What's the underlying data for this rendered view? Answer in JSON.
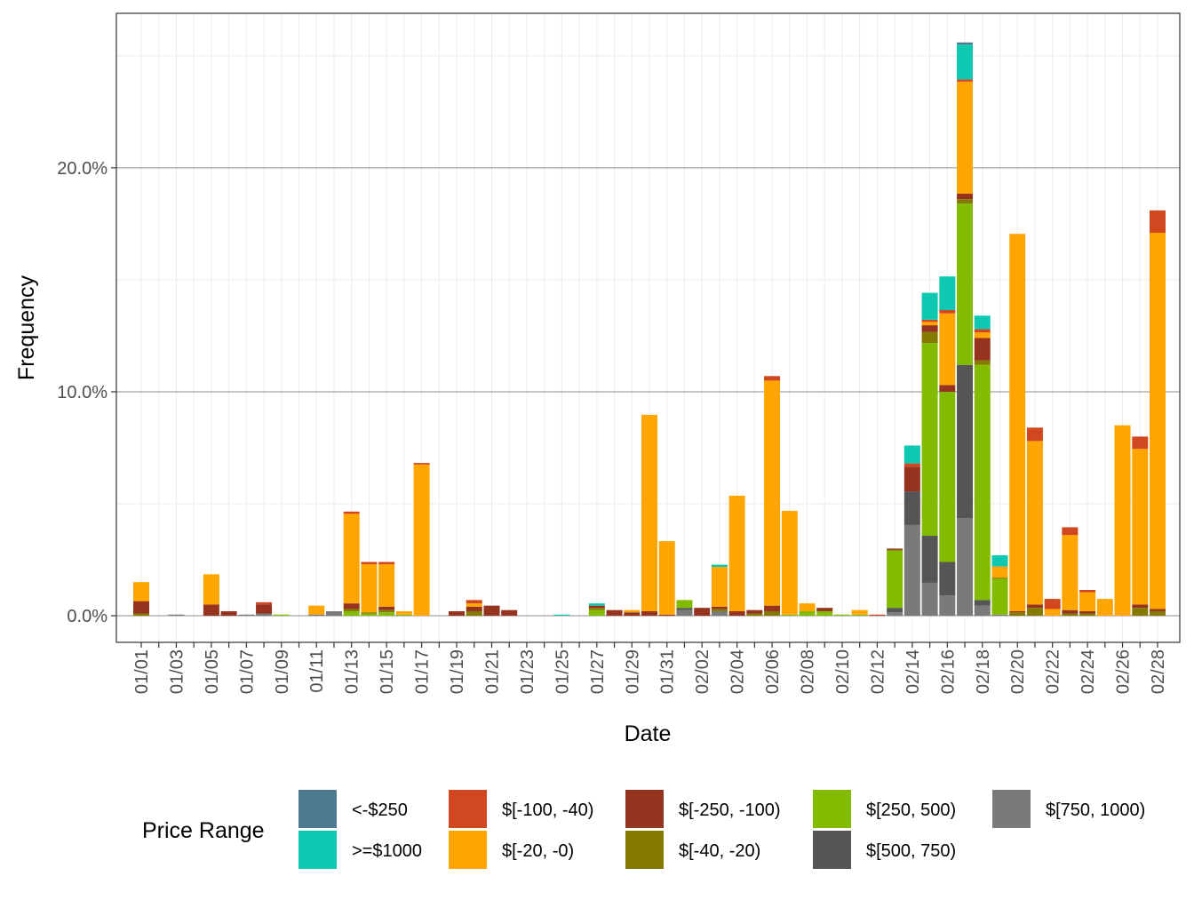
{
  "chart_data": {
    "type": "stacked_bar",
    "x_label": "Date",
    "y_label": "Frequency",
    "legend_title": "Price Range",
    "categories": [
      "01/01",
      null,
      "01/03",
      null,
      "01/05",
      null,
      "01/07",
      null,
      "01/09",
      null,
      "01/11",
      null,
      "01/13",
      null,
      "01/15",
      null,
      "01/17",
      null,
      "01/19",
      null,
      "01/21",
      null,
      "01/23",
      null,
      "01/25",
      null,
      "01/27",
      null,
      "01/29",
      null,
      "01/31",
      null,
      "02/02",
      null,
      "02/04",
      null,
      "02/06",
      null,
      "02/08",
      null,
      "02/10",
      null,
      "02/12",
      null,
      "02/14",
      null,
      "02/16",
      null,
      "02/18",
      null,
      "02/20",
      null,
      "02/22",
      null,
      "02/24",
      null,
      "02/26",
      null,
      "02/28"
    ],
    "ylim": [
      -1.19,
      26.9
    ],
    "yticks": [
      {
        "value": 0,
        "label": "0.0%"
      },
      {
        "value": 10,
        "label": "10.0%"
      },
      {
        "value": 20,
        "label": "20.0%"
      }
    ],
    "y_minor_ticks": [
      5,
      15,
      25
    ],
    "grid": true,
    "legend_position": "bottom",
    "series": [
      {
        "name": "<-$250",
        "color": "#4e7a8f",
        "values": [
          0,
          0,
          0,
          0,
          0,
          0,
          0,
          0,
          0,
          0,
          0,
          0,
          0,
          0,
          0,
          0,
          0,
          0,
          0,
          0,
          0,
          0,
          0,
          0,
          0,
          0,
          0,
          0,
          0,
          0,
          0,
          0,
          0,
          0,
          0,
          0,
          0,
          0,
          0,
          0,
          0,
          0,
          0,
          0,
          0,
          0,
          0,
          0.1,
          0,
          0,
          0,
          0,
          0,
          0,
          0,
          0,
          0,
          0,
          0
        ]
      },
      {
        "name": ">=$1000",
        "color": "#0fc8b2",
        "values": [
          0,
          0,
          0,
          0,
          0,
          0,
          0,
          0,
          0,
          0,
          0,
          0,
          0,
          0,
          0,
          0,
          0,
          0,
          0,
          0,
          0,
          0,
          0,
          0,
          0.05,
          0,
          0.1,
          0,
          0,
          0,
          0,
          0,
          0,
          0.1,
          0,
          0,
          0,
          0,
          0,
          0,
          0,
          0,
          0,
          0,
          0.8,
          1.2,
          1.5,
          1.55,
          0.6,
          0.5,
          0,
          0,
          0,
          0,
          0,
          0,
          0,
          0,
          0
        ]
      },
      {
        "name": "$[-100, -40)",
        "color": "#d14720",
        "values": [
          0,
          0,
          0,
          0,
          0,
          0,
          0,
          0.1,
          0,
          0,
          0,
          0,
          0.1,
          0.1,
          0.1,
          0,
          0.07,
          0,
          0,
          0.15,
          0,
          0,
          0,
          0,
          0,
          0,
          0,
          0,
          0,
          0,
          0,
          0,
          0,
          0,
          0,
          0,
          0.2,
          0,
          0,
          0,
          0,
          0,
          0.05,
          0,
          0.15,
          0.1,
          0.15,
          0.1,
          0.15,
          0,
          0,
          0.6,
          0.45,
          0.35,
          0.1,
          0,
          0,
          0.55,
          1.0
        ]
      },
      {
        "name": "$[-20, -0)",
        "color": "#ffa500",
        "values": [
          0.85,
          0,
          0,
          0,
          1.35,
          0,
          0,
          0,
          0,
          0,
          0.4,
          0,
          4.0,
          2.15,
          1.9,
          0.15,
          6.75,
          0,
          0,
          0.15,
          0,
          0,
          0,
          0,
          0,
          0,
          0,
          0,
          0.1,
          8.77,
          3.28,
          0,
          0,
          1.78,
          5.16,
          0,
          10.05,
          4.63,
          0.35,
          0,
          0,
          0.2,
          0,
          0,
          0,
          0.15,
          3.2,
          5.0,
          0.25,
          0.5,
          16.85,
          7.3,
          0.3,
          3.35,
          0.85,
          0.75,
          8.5,
          6.95,
          16.8
        ]
      },
      {
        "name": "$[-250, -100)",
        "color": "#96331f",
        "values": [
          0.55,
          0,
          0,
          0,
          0.5,
          0.2,
          0,
          0.4,
          0,
          0,
          0,
          0,
          0.25,
          0,
          0.15,
          0,
          0,
          0,
          0.2,
          0.2,
          0.45,
          0.25,
          0,
          0,
          0,
          0,
          0.1,
          0.25,
          0.15,
          0.2,
          0.05,
          0,
          0.35,
          0.1,
          0.2,
          0.15,
          0.25,
          0,
          0,
          0.15,
          0,
          0,
          0,
          0.05,
          1.1,
          0.3,
          0.3,
          0.25,
          1.0,
          0,
          0.05,
          0.15,
          0,
          0.15,
          0.1,
          0,
          0,
          0.15,
          0.1
        ]
      },
      {
        "name": "$[-40, -20)",
        "color": "#857a00",
        "values": [
          0.1,
          0,
          0,
          0,
          0,
          0,
          0,
          0,
          0,
          0,
          0,
          0,
          0.1,
          0.05,
          0.1,
          0,
          0,
          0,
          0,
          0.2,
          0,
          0,
          0,
          0,
          0,
          0,
          0.1,
          0,
          0,
          0,
          0,
          0,
          0,
          0.1,
          0,
          0.1,
          0.2,
          0,
          0,
          0,
          0,
          0,
          0,
          0.05,
          0,
          0.5,
          0,
          0.2,
          0.2,
          0.05,
          0.15,
          0.35,
          0,
          0.1,
          0.1,
          0,
          0,
          0.35,
          0.2
        ]
      },
      {
        "name": "$[250, 500)",
        "color": "#83bb00",
        "values": [
          0,
          0,
          0,
          0,
          0,
          0,
          0,
          0,
          0.05,
          0,
          0,
          0,
          0.2,
          0.1,
          0.15,
          0.05,
          0,
          0,
          0,
          0,
          0,
          0,
          0,
          0,
          0,
          0,
          0.25,
          0,
          0,
          0,
          0,
          0.35,
          0,
          0,
          0,
          0,
          0,
          0.05,
          0.2,
          0.2,
          0.05,
          0.05,
          0,
          2.55,
          0,
          8.6,
          7.6,
          7.2,
          10.5,
          1.6,
          0,
          0,
          0,
          0,
          0,
          0,
          0,
          0,
          0
        ]
      },
      {
        "name": "$[500, 750)",
        "color": "#555555",
        "values": [
          0,
          0,
          0,
          0,
          0,
          0,
          0,
          0,
          0,
          0,
          0,
          0,
          0,
          0,
          0,
          0,
          0,
          0,
          0,
          0,
          0,
          0,
          0,
          0,
          0,
          0,
          0,
          0,
          0,
          0,
          0,
          0.1,
          0,
          0,
          0,
          0,
          0,
          0,
          0,
          0,
          0,
          0,
          0,
          0.2,
          1.5,
          2.1,
          1.5,
          6.85,
          0.25,
          0,
          0,
          0,
          0,
          0,
          0,
          0,
          0,
          0,
          0
        ]
      },
      {
        "name": "$[750, 1000)",
        "color": "#7a7a7a",
        "values": [
          0,
          0,
          0.05,
          0,
          0,
          0,
          0.05,
          0.1,
          0,
          0,
          0.05,
          0.2,
          0,
          0,
          0,
          0,
          0,
          0,
          0,
          0,
          0,
          0,
          0,
          0,
          0,
          0,
          0,
          0,
          0,
          0,
          0,
          0.25,
          0,
          0.2,
          0,
          0,
          0,
          0,
          0,
          0,
          0,
          0,
          0,
          0.15,
          4.05,
          1.47,
          0.9,
          4.35,
          0.45,
          0.05,
          0,
          0,
          0,
          0,
          0,
          0,
          0,
          0,
          0
        ]
      }
    ]
  }
}
